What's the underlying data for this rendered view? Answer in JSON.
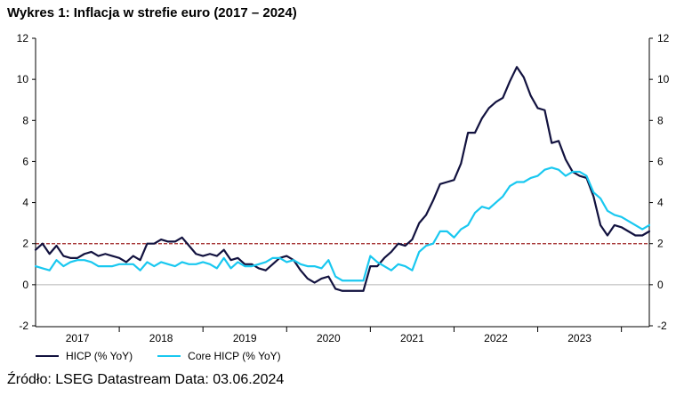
{
  "chart_data": {
    "type": "line",
    "title": "Wykres 1: Inflacja w strefie euro (2017 – 2024)",
    "xlabel": "",
    "ylabel": "",
    "ylim": [
      -2,
      12
    ],
    "yticks": [
      -2,
      0,
      2,
      4,
      6,
      8,
      10,
      12
    ],
    "x_start": "2017-01",
    "x_end": "2024-05",
    "year_labels": [
      "2017",
      "2018",
      "2019",
      "2020",
      "2021",
      "2022",
      "2023"
    ],
    "reference_line": {
      "value": 2,
      "color": "#9b1c1c",
      "style": "dashed"
    },
    "legend_position": "bottom-left",
    "grid": false,
    "series": [
      {
        "name": "HICP (% YoY)",
        "color": "#12123f",
        "values": [
          1.7,
          2.0,
          1.5,
          1.9,
          1.4,
          1.3,
          1.3,
          1.5,
          1.6,
          1.4,
          1.5,
          1.4,
          1.3,
          1.1,
          1.4,
          1.2,
          2.0,
          2.0,
          2.2,
          2.1,
          2.1,
          2.3,
          1.9,
          1.5,
          1.4,
          1.5,
          1.4,
          1.7,
          1.2,
          1.3,
          1.0,
          1.0,
          0.8,
          0.7,
          1.0,
          1.3,
          1.4,
          1.2,
          0.7,
          0.3,
          0.1,
          0.3,
          0.4,
          -0.2,
          -0.3,
          -0.3,
          -0.3,
          -0.3,
          0.9,
          0.9,
          1.3,
          1.6,
          2.0,
          1.9,
          2.2,
          3.0,
          3.4,
          4.1,
          4.9,
          5.0,
          5.1,
          5.9,
          7.4,
          7.4,
          8.1,
          8.6,
          8.9,
          9.1,
          9.9,
          10.6,
          10.1,
          9.2,
          8.6,
          8.5,
          6.9,
          7.0,
          6.1,
          5.5,
          5.3,
          5.2,
          4.3,
          2.9,
          2.4,
          2.9,
          2.8,
          2.6,
          2.4,
          2.4,
          2.6
        ]
      },
      {
        "name": "Core HICP (% YoY)",
        "color": "#19c8f0",
        "values": [
          0.9,
          0.8,
          0.7,
          1.2,
          0.9,
          1.1,
          1.2,
          1.2,
          1.1,
          0.9,
          0.9,
          0.9,
          1.0,
          1.0,
          1.0,
          0.7,
          1.1,
          0.9,
          1.1,
          1.0,
          0.9,
          1.1,
          1.0,
          1.0,
          1.1,
          1.0,
          0.8,
          1.3,
          0.8,
          1.1,
          0.9,
          0.9,
          1.0,
          1.1,
          1.3,
          1.3,
          1.1,
          1.2,
          1.0,
          0.9,
          0.9,
          0.8,
          1.2,
          0.4,
          0.2,
          0.2,
          0.2,
          0.2,
          1.4,
          1.1,
          0.9,
          0.7,
          1.0,
          0.9,
          0.7,
          1.6,
          1.9,
          2.0,
          2.6,
          2.6,
          2.3,
          2.7,
          2.9,
          3.5,
          3.8,
          3.7,
          4.0,
          4.3,
          4.8,
          5.0,
          5.0,
          5.2,
          5.3,
          5.6,
          5.7,
          5.6,
          5.3,
          5.5,
          5.5,
          5.3,
          4.5,
          4.2,
          3.6,
          3.4,
          3.3,
          3.1,
          2.9,
          2.7,
          2.9
        ]
      }
    ]
  },
  "source": "Źródło: LSEG Datastream Data: 03.06.2024"
}
